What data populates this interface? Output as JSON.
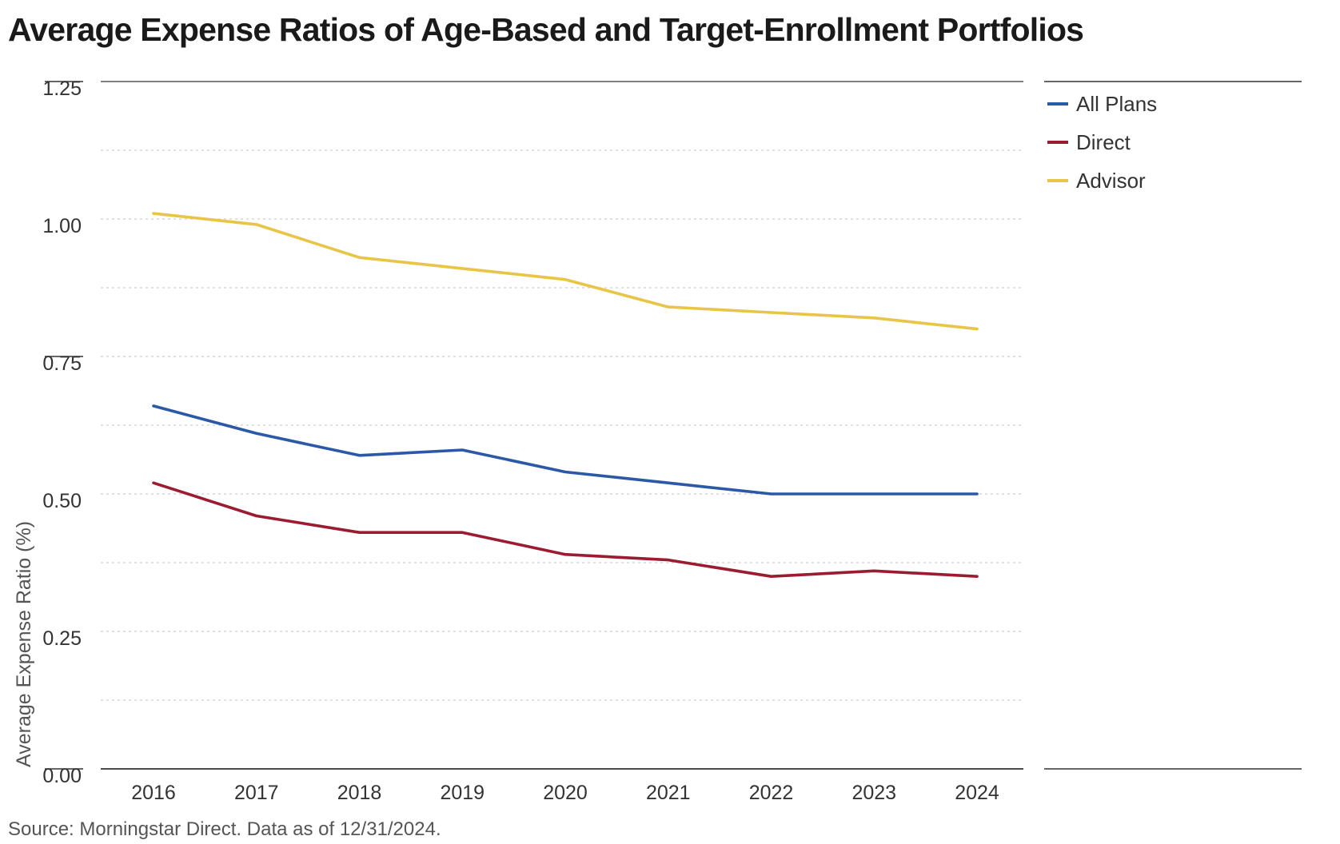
{
  "title": "Average Expense Ratios of Age-Based and Target-Enrollment Portfolios",
  "source": "Source: Morningstar Direct. Data as of 12/31/2024.",
  "chart_data": {
    "type": "line",
    "title": "Average Expense Ratios of Age-Based and Target-Enrollment Portfolios",
    "xlabel": "",
    "ylabel": "Average Expense Ratio (%)",
    "x": [
      "2016",
      "2017",
      "2018",
      "2019",
      "2020",
      "2021",
      "2022",
      "2023",
      "2024"
    ],
    "ylim": [
      0,
      1.25
    ],
    "yticks": [
      "0.00",
      "0.25",
      "0.50",
      "0.75",
      "1.00",
      "1.25"
    ],
    "grid": true,
    "legend": "right",
    "series": [
      {
        "name": "All Plans",
        "color": "#2b59a8",
        "values": [
          0.66,
          0.61,
          0.57,
          0.58,
          0.54,
          0.52,
          0.5,
          0.5,
          0.5
        ]
      },
      {
        "name": "Direct",
        "color": "#9b1b30",
        "values": [
          0.52,
          0.46,
          0.43,
          0.43,
          0.39,
          0.38,
          0.35,
          0.36,
          0.35
        ]
      },
      {
        "name": "Advisor",
        "color": "#e8c547",
        "values": [
          1.01,
          0.99,
          0.93,
          0.91,
          0.89,
          0.84,
          0.83,
          0.82,
          0.8
        ]
      }
    ]
  }
}
